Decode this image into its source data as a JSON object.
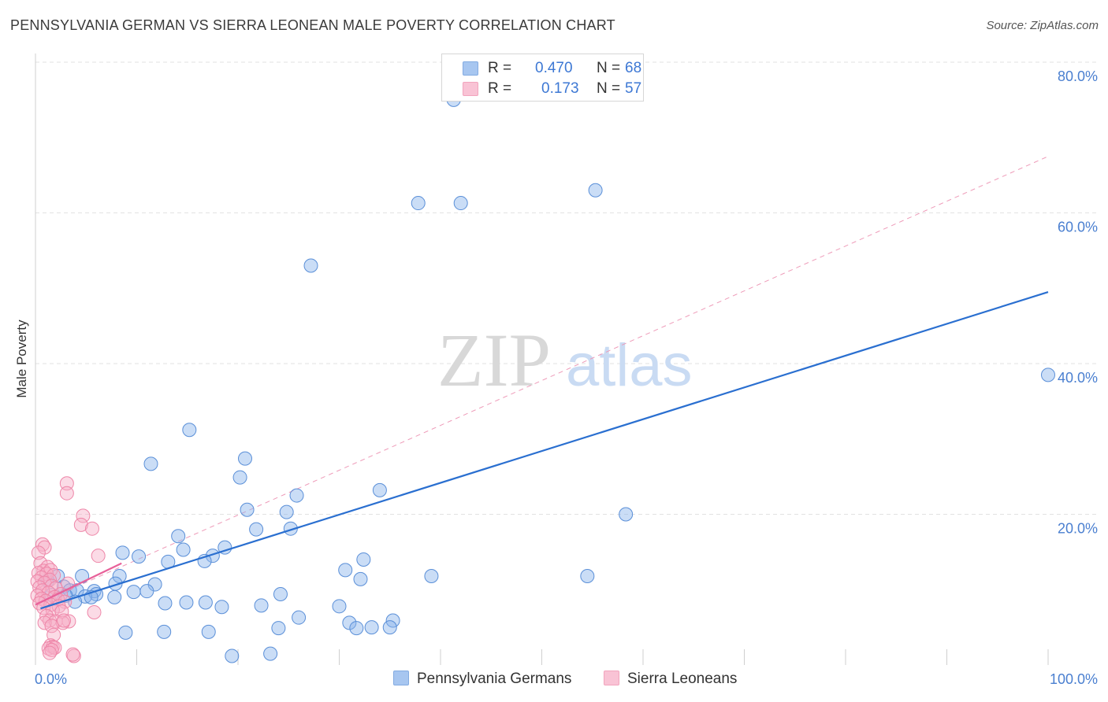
{
  "chart_data": {
    "type": "scatter",
    "title": "PENNSYLVANIA GERMAN VS SIERRA LEONEAN MALE POVERTY CORRELATION CHART",
    "source": "Source: ZipAtlas.com",
    "ylabel": "Male Poverty",
    "xlim": [
      0,
      100
    ],
    "ylim": [
      0,
      80
    ],
    "y_ticks": [
      {
        "value": 20,
        "label": "20.0%"
      },
      {
        "value": 40,
        "label": "40.0%"
      },
      {
        "value": 60,
        "label": "60.0%"
      },
      {
        "value": 80,
        "label": "80.0%"
      }
    ],
    "x_ticks_labels": {
      "min": "0.0%",
      "max": "100.0%"
    },
    "watermark": {
      "zip": "ZIP",
      "atlas": "atlas"
    },
    "series": [
      {
        "name": "Pennsylvania Germans",
        "color": "#8ab4ec",
        "stroke": "#5a8fd8",
        "line_color": "#2a6fd0",
        "R": "0.470",
        "N": "68",
        "trend": {
          "x1": 0.5,
          "y1": 7.5,
          "x2": 100,
          "y2": 49.5
        },
        "points": [
          [
            41.3,
            75.0
          ],
          [
            55.3,
            63.0
          ],
          [
            37.8,
            61.3
          ],
          [
            42.0,
            61.3
          ],
          [
            27.2,
            53.0
          ],
          [
            100,
            38.5
          ],
          [
            15.2,
            31.2
          ],
          [
            20.7,
            27.4
          ],
          [
            11.4,
            26.7
          ],
          [
            20.2,
            24.9
          ],
          [
            34.0,
            23.2
          ],
          [
            25.8,
            22.5
          ],
          [
            20.9,
            20.6
          ],
          [
            24.8,
            20.3
          ],
          [
            58.3,
            20.0
          ],
          [
            21.8,
            18.0
          ],
          [
            25.2,
            18.1
          ],
          [
            14.1,
            17.1
          ],
          [
            18.7,
            15.6
          ],
          [
            8.6,
            14.9
          ],
          [
            14.6,
            15.3
          ],
          [
            17.5,
            14.5
          ],
          [
            10.2,
            14.4
          ],
          [
            13.1,
            13.7
          ],
          [
            16.7,
            13.8
          ],
          [
            32.4,
            14.0
          ],
          [
            30.6,
            12.6
          ],
          [
            8.3,
            11.8
          ],
          [
            4.6,
            11.8
          ],
          [
            32.1,
            11.4
          ],
          [
            39.1,
            11.8
          ],
          [
            54.5,
            11.8
          ],
          [
            1.2,
            11.2
          ],
          [
            7.9,
            10.8
          ],
          [
            11.8,
            10.7
          ],
          [
            2.8,
            10.4
          ],
          [
            3.4,
            9.9
          ],
          [
            4.1,
            9.9
          ],
          [
            5.8,
            9.8
          ],
          [
            9.7,
            9.7
          ],
          [
            6.0,
            9.4
          ],
          [
            1.6,
            9.3
          ],
          [
            3.0,
            9.2
          ],
          [
            4.9,
            9.1
          ],
          [
            11.0,
            9.8
          ],
          [
            24.2,
            9.4
          ],
          [
            5.5,
            9.0
          ],
          [
            7.8,
            9.0
          ],
          [
            3.9,
            8.4
          ],
          [
            12.8,
            8.2
          ],
          [
            14.9,
            8.3
          ],
          [
            16.8,
            8.3
          ],
          [
            18.4,
            7.7
          ],
          [
            22.3,
            7.9
          ],
          [
            30.0,
            7.8
          ],
          [
            26.0,
            6.3
          ],
          [
            31.0,
            5.6
          ],
          [
            33.2,
            5.0
          ],
          [
            35.3,
            5.9
          ],
          [
            8.9,
            4.3
          ],
          [
            12.7,
            4.4
          ],
          [
            17.1,
            4.4
          ],
          [
            24.0,
            4.9
          ],
          [
            31.7,
            4.9
          ],
          [
            35.0,
            5.0
          ],
          [
            19.4,
            1.2
          ],
          [
            23.2,
            1.5
          ],
          [
            2.2,
            11.8
          ]
        ]
      },
      {
        "name": "Sierra Leoneans",
        "color": "#f7b0c8",
        "stroke": "#ee86a8",
        "line_color": "#e8619a",
        "R": "0.173",
        "N": "57",
        "trend": {
          "x1": 0.0,
          "y1": 8.0,
          "x2": 8.5,
          "y2": 13.5
        },
        "dashed": {
          "x1": 0.0,
          "y1": 8.0,
          "x2": 100,
          "y2": 67.5
        },
        "points": [
          [
            3.1,
            24.1
          ],
          [
            3.1,
            22.8
          ],
          [
            4.7,
            19.8
          ],
          [
            4.5,
            18.6
          ],
          [
            5.6,
            18.1
          ],
          [
            0.7,
            16.0
          ],
          [
            0.9,
            15.6
          ],
          [
            0.3,
            14.9
          ],
          [
            6.2,
            14.5
          ],
          [
            0.5,
            13.5
          ],
          [
            1.2,
            13.0
          ],
          [
            0.8,
            12.5
          ],
          [
            1.5,
            12.6
          ],
          [
            0.3,
            12.2
          ],
          [
            1.1,
            12.1
          ],
          [
            1.8,
            11.9
          ],
          [
            0.6,
            11.6
          ],
          [
            1.4,
            11.3
          ],
          [
            0.2,
            11.1
          ],
          [
            0.9,
            10.9
          ],
          [
            3.2,
            10.8
          ],
          [
            1.6,
            10.5
          ],
          [
            0.4,
            10.3
          ],
          [
            2.0,
            10.2
          ],
          [
            0.7,
            9.9
          ],
          [
            1.3,
            9.6
          ],
          [
            2.5,
            9.4
          ],
          [
            0.2,
            9.2
          ],
          [
            1.9,
            9.0
          ],
          [
            0.6,
            8.8
          ],
          [
            2.2,
            8.7
          ],
          [
            1.0,
            8.5
          ],
          [
            2.9,
            8.4
          ],
          [
            0.4,
            8.2
          ],
          [
            1.5,
            8.0
          ],
          [
            2.3,
            7.8
          ],
          [
            0.8,
            7.6
          ],
          [
            1.7,
            7.3
          ],
          [
            2.6,
            7.1
          ],
          [
            5.8,
            7.0
          ],
          [
            1.1,
            6.5
          ],
          [
            1.4,
            5.9
          ],
          [
            2.0,
            5.8
          ],
          [
            0.9,
            5.6
          ],
          [
            3.3,
            5.8
          ],
          [
            2.7,
            5.6
          ],
          [
            1.6,
            5.2
          ],
          [
            2.8,
            5.9
          ],
          [
            1.8,
            4.0
          ],
          [
            1.5,
            2.6
          ],
          [
            1.7,
            2.4
          ],
          [
            1.3,
            2.2
          ],
          [
            1.9,
            2.3
          ],
          [
            1.6,
            2.0
          ],
          [
            1.4,
            1.6
          ],
          [
            3.8,
            1.2
          ],
          [
            3.7,
            1.4
          ]
        ]
      }
    ]
  },
  "legend": {
    "r_label": "R =",
    "n_label": "N ="
  }
}
